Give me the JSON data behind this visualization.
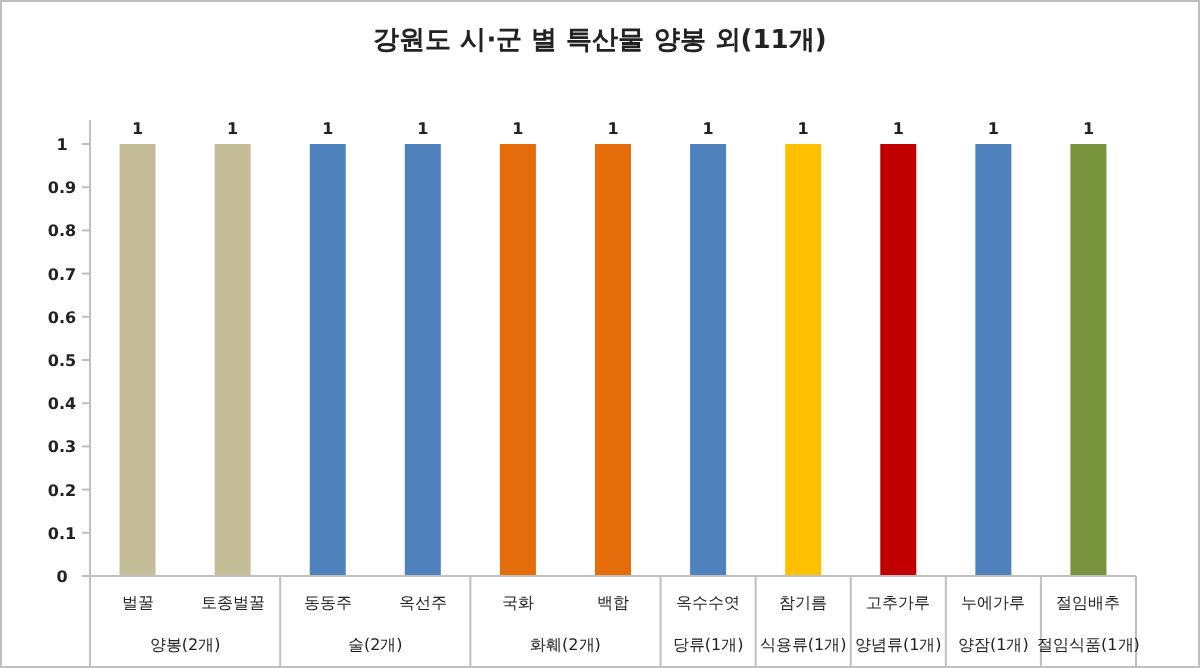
{
  "chart_data": {
    "type": "bar",
    "title": "강원도 시·군 별 특산물 양봉 외(11개)",
    "categories": [
      "벌꿀",
      "토종벌꿀",
      "동동주",
      "옥선주",
      "국화",
      "백합",
      "옥수수엿",
      "참기름",
      "고추가루",
      "누에가루",
      "절임배추"
    ],
    "values": [
      1,
      1,
      1,
      1,
      1,
      1,
      1,
      1,
      1,
      1,
      1
    ],
    "colors": [
      "#c4bd97",
      "#c4bd97",
      "#4f81bd",
      "#4f81bd",
      "#e46c0a",
      "#e46c0a",
      "#4f81bd",
      "#ffc000",
      "#c00000",
      "#4f81bd",
      "#77933c"
    ],
    "ylim": [
      0,
      1
    ],
    "yticks": [
      0,
      0.1,
      0.2,
      0.3,
      0.4,
      0.5,
      0.6,
      0.7,
      0.8,
      0.9,
      1
    ],
    "data_labels": true,
    "annotations": [
      "양봉(2개)",
      "술(2개)",
      "화훼(2개)",
      "당류(1개)",
      "식용류(1개)",
      "양념류(1개)",
      "양잠(1개)",
      "절임식품(1개)"
    ]
  }
}
